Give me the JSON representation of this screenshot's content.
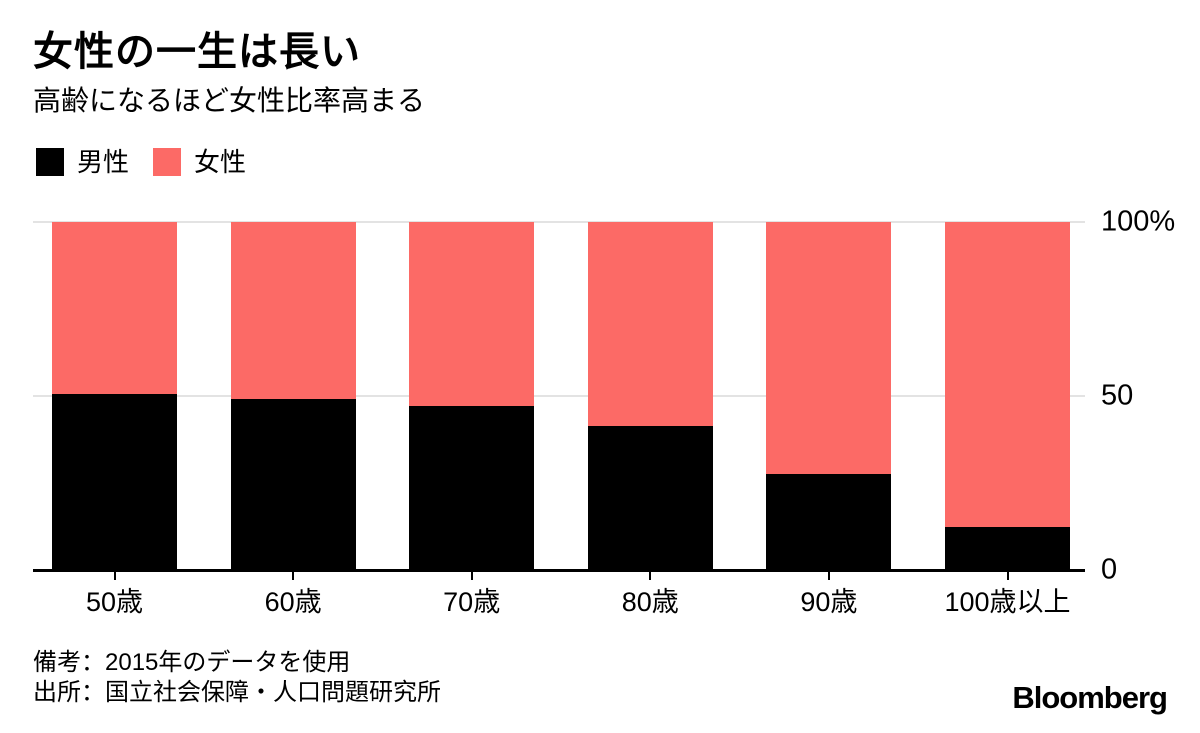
{
  "header": {
    "title": "女性の一生は長い",
    "subtitle": "高齢になるほど女性比率高まる"
  },
  "legend": {
    "items": [
      {
        "label": "男性",
        "color": "#000000"
      },
      {
        "label": "女性",
        "color": "#FC6A66"
      }
    ]
  },
  "chart_data": {
    "type": "bar",
    "stacked": true,
    "unit": "%",
    "title": "女性の一生は長い",
    "subtitle": "高齢になるほど女性比率高まる",
    "categories": [
      "50歳",
      "60歳",
      "70歳",
      "80歳",
      "90歳",
      "100歳以上"
    ],
    "series": [
      {
        "name": "男性",
        "color": "#000000",
        "values": [
          50.5,
          49.0,
          47.0,
          41.4,
          27.6,
          12.4
        ]
      },
      {
        "name": "女性",
        "color": "#FC6A66",
        "values": [
          49.5,
          51.0,
          53.0,
          58.6,
          72.4,
          87.6
        ]
      }
    ],
    "ylim": [
      0,
      100
    ],
    "y_ticks": [
      {
        "value": 100,
        "label": "100%"
      },
      {
        "value": 50,
        "label": "50"
      },
      {
        "value": 0,
        "label": "0"
      }
    ],
    "grid": "horizontal",
    "gridline_values": [
      100,
      50
    ],
    "legend_position": "top",
    "colors": {
      "grid": "#e3e3e3",
      "axis": "#000000",
      "background": "#ffffff"
    }
  },
  "footer": {
    "note": "備考：2015年のデータを使用",
    "source": "出所：国立社会保障・人口問題研究所",
    "brand": "Bloomberg"
  }
}
